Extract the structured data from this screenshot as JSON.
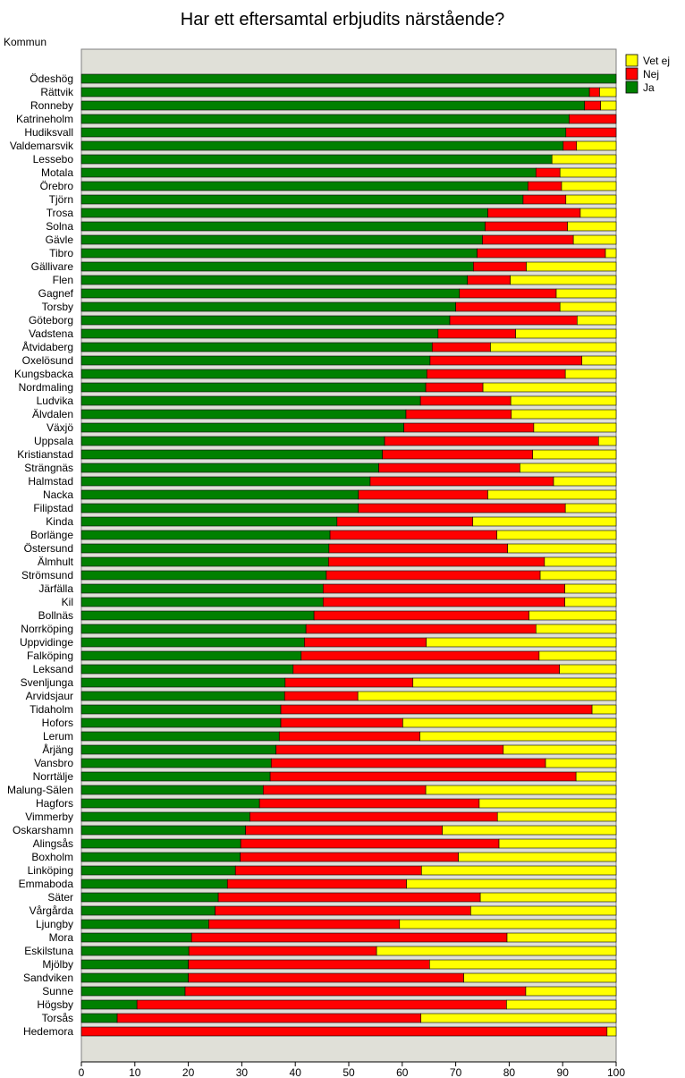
{
  "chart_data": {
    "type": "bar",
    "orientation": "horizontal",
    "stacked": true,
    "title": "Har ett eftersamtal erbjudits närstående?",
    "ylabel": "Kommun",
    "xlabel": "",
    "xlim": [
      0,
      100
    ],
    "xticks": [
      "0",
      "10",
      "20",
      "30",
      "40",
      "50",
      "60",
      "70",
      "80",
      "90",
      "100"
    ],
    "legend_position": "top-right",
    "colors": {
      "Ja": "#008000",
      "Nej": "#ff0000",
      "Vet ej": "#ffff00",
      "plot_bg": "#e0e0d8"
    },
    "legend": [
      "Vet ej",
      "Nej",
      "Ja"
    ],
    "categories": [
      "Ödeshög",
      "Rättvik",
      "Ronneby",
      "Katrineholm",
      "Hudiksvall",
      "Valdemarsvik",
      "Lessebo",
      "Motala",
      "Örebro",
      "Tjörn",
      "Trosa",
      "Solna",
      "Gävle",
      "Tibro",
      "Gällivare",
      "Flen",
      "Gagnef",
      "Torsby",
      "Göteborg",
      "Vadstena",
      "Åtvidaberg",
      "Oxelösund",
      "Kungsbacka",
      "Nordmaling",
      "Ludvika",
      "Älvdalen",
      "Växjö",
      "Uppsala",
      "Kristianstad",
      "Strängnäs",
      "Halmstad",
      "Nacka",
      "Filipstad",
      "Kinda",
      "Borlänge",
      "Östersund",
      "Älmhult",
      "Strömsund",
      "Järfälla",
      "Kil",
      "Bollnäs",
      "Norrköping",
      "Uppvidinge",
      "Falköping",
      "Leksand",
      "Svenljunga",
      "Arvidsjaur",
      "Tidaholm",
      "Hofors",
      "Lerum",
      "Årjäng",
      "Vansbro",
      "Norrtälje",
      "Malung-Sälen",
      "Hagfors",
      "Vimmerby",
      "Oskarshamn",
      "Alingsås",
      "Boxholm",
      "Linköping",
      "Emmaboda",
      "Säter",
      "Vårgårda",
      "Ljungby",
      "Mora",
      "Eskilstuna",
      "Mjölby",
      "Sandviken",
      "Sunne",
      "Högsby",
      "Torsås",
      "Hedemora"
    ],
    "series": [
      {
        "name": "Ja",
        "values": [
          100,
          95,
          94.1,
          91.2,
          90.6,
          90.1,
          88,
          85,
          83.5,
          82.6,
          76,
          75.5,
          75,
          74,
          73.3,
          72.2,
          70.7,
          70,
          68.9,
          66.7,
          65.6,
          65.2,
          64.6,
          64.4,
          63.4,
          60.7,
          60.3,
          56.7,
          56.3,
          55.6,
          54,
          51.8,
          51.8,
          47.8,
          46.5,
          46.3,
          46.2,
          45.8,
          45.2,
          45.2,
          43.5,
          42,
          41.7,
          41.1,
          39.6,
          38.1,
          38,
          37.3,
          37.3,
          37,
          36.4,
          35.5,
          35.3,
          34,
          33.3,
          31.5,
          30.7,
          29.8,
          29.7,
          28.8,
          27.3,
          25.6,
          25,
          23.8,
          20.6,
          20.1,
          20,
          20,
          19.4,
          10.4,
          6.7,
          0
        ]
      },
      {
        "name": "Nej",
        "values": [
          0,
          1.9,
          3.0,
          8.8,
          9.4,
          2.5,
          0,
          4.5,
          6.3,
          8.0,
          17.3,
          15.4,
          17.0,
          24.0,
          9.9,
          8.0,
          18.1,
          19.5,
          23.8,
          14.5,
          10.9,
          28.4,
          25.9,
          10.7,
          16.9,
          19.7,
          24.3,
          40.0,
          28.1,
          26.4,
          34.3,
          24.2,
          38.7,
          25.4,
          31.2,
          33.4,
          40.4,
          40.0,
          45.2,
          45.2,
          40.2,
          43.0,
          22.8,
          44.5,
          49.8,
          23.9,
          13.7,
          58.2,
          22.8,
          26.3,
          42.5,
          51.3,
          57.2,
          30.4,
          41.1,
          46.3,
          36.8,
          48.3,
          40.8,
          34.8,
          33.5,
          49.0,
          47.8,
          35.7,
          59.0,
          35.1,
          45.1,
          51.5,
          63.7,
          69.1,
          56.8,
          98.3
        ]
      },
      {
        "name": "Vet ej",
        "values": [
          0,
          3.1,
          2.9,
          0,
          0,
          7.4,
          12,
          10.5,
          10.2,
          9.4,
          6.7,
          9.1,
          8.0,
          2.0,
          16.8,
          19.8,
          11.2,
          10.5,
          7.3,
          18.8,
          23.5,
          6.4,
          9.5,
          24.9,
          19.7,
          19.6,
          15.4,
          3.3,
          15.6,
          18.0,
          11.7,
          24.0,
          9.5,
          26.8,
          22.3,
          20.3,
          13.4,
          14.2,
          9.6,
          9.6,
          16.3,
          15.0,
          35.5,
          14.4,
          10.6,
          38.0,
          48.3,
          4.5,
          39.9,
          36.7,
          21.1,
          13.2,
          7.5,
          35.6,
          25.6,
          22.2,
          32.5,
          21.9,
          29.5,
          36.4,
          39.2,
          25.4,
          27.2,
          40.5,
          20.4,
          44.8,
          34.9,
          28.5,
          16.9,
          20.5,
          36.5,
          1.7
        ]
      }
    ]
  }
}
